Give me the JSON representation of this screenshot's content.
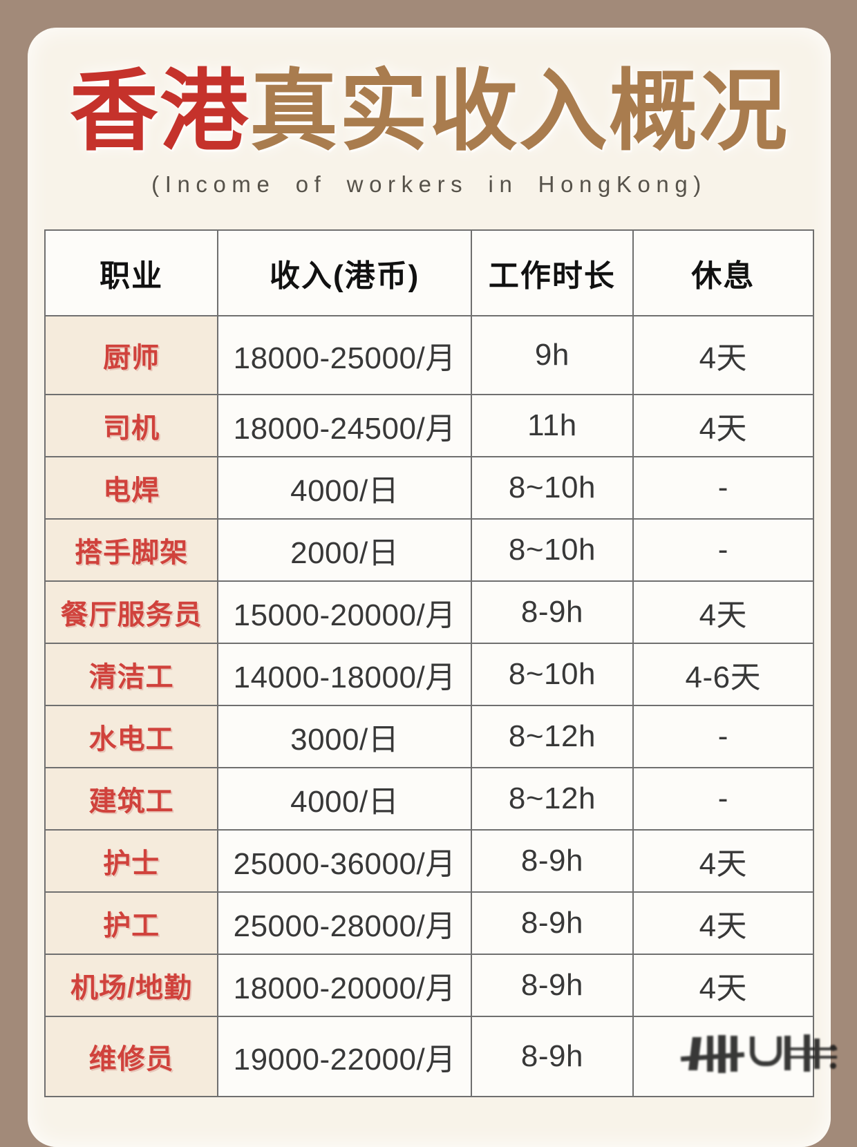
{
  "title": {
    "highlight": "香港",
    "rest": "真实收入概况",
    "highlight_color": "#c5322b",
    "rest_color": "#a97c4e"
  },
  "subtitle": "(Income of workers in HongKong)",
  "table": {
    "headers": [
      "职业",
      "收入(港币)",
      "工作时长",
      "休息"
    ],
    "rows": [
      [
        "厨师",
        "18000-25000/月",
        "9h",
        "4天"
      ],
      [
        "司机",
        "18000-24500/月",
        "11h",
        "4天"
      ],
      [
        "电焊",
        "4000/日",
        "8~10h",
        "-"
      ],
      [
        "搭手脚架",
        "2000/日",
        "8~10h",
        "-"
      ],
      [
        "餐厅服务员",
        "15000-20000/月",
        "8-9h",
        "4天"
      ],
      [
        "清洁工",
        "14000-18000/月",
        "8~10h",
        "4-6天"
      ],
      [
        "水电工",
        "3000/日",
        "8~12h",
        "-"
      ],
      [
        "建筑工",
        "4000/日",
        "8~12h",
        "-"
      ],
      [
        "护士",
        "25000-36000/月",
        "8-9h",
        "4天"
      ],
      [
        "护工",
        "25000-28000/月",
        "8-9h",
        "4天"
      ],
      [
        "机场/地勤",
        "18000-20000/月",
        "8-9h",
        "4天"
      ],
      [
        "维修员",
        "19000-22000/月",
        "8-9h",
        ""
      ]
    ]
  },
  "watermark": "illegible-dark-watermark",
  "colors": {
    "frame_background": "#a28a79",
    "card_background": "#f8f3e9",
    "occupation_column_background": "#f5ebdc",
    "cell_background": "#fdfcf9",
    "occupation_text": "#d0423c",
    "cell_text": "#383838",
    "header_text": "#111111",
    "border": "#6f6f6f",
    "subtitle_text": "#56524a"
  }
}
